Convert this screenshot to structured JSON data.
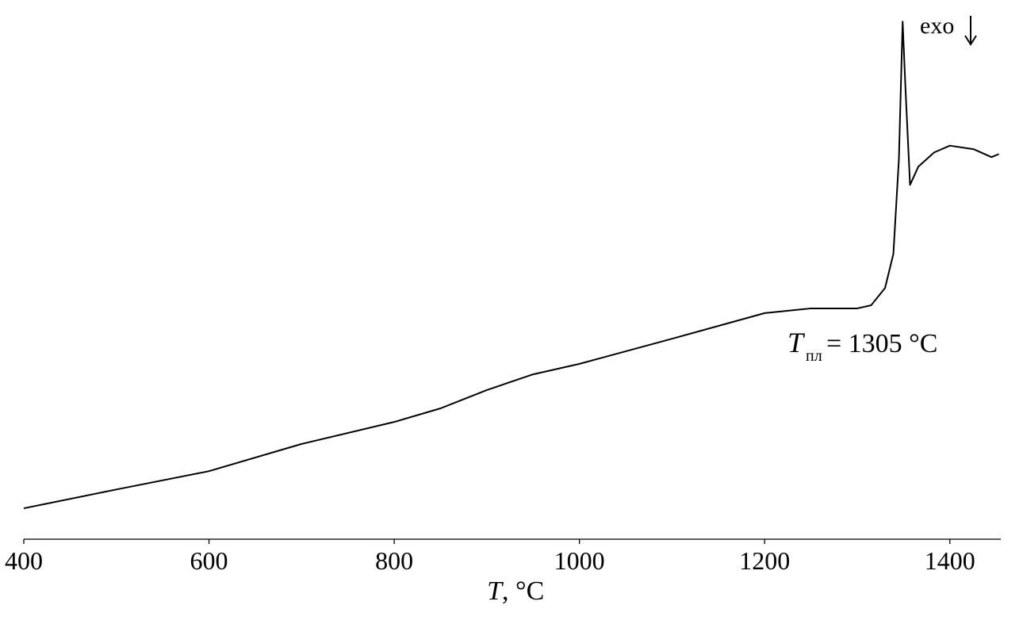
{
  "chart_data": {
    "type": "line",
    "x_label": {
      "symbol": "T",
      "unit": ", °C"
    },
    "annotation": {
      "symbol": "T",
      "subscript": "пл",
      "text": "= 1305 °C",
      "x": 1305
    },
    "direction_label": "exo",
    "x": [
      400,
      500,
      600,
      700,
      800,
      850,
      900,
      950,
      1000,
      1100,
      1200,
      1250,
      1300,
      1315,
      1330,
      1339,
      1345,
      1349,
      1352,
      1357,
      1366,
      1383,
      1400,
      1426,
      1445,
      1453
    ],
    "series": [
      {
        "color": "#000000",
        "values": [
          5.9,
          9.5,
          13.0,
          18.2,
          22.4,
          25.0,
          28.5,
          31.5,
          33.5,
          38.3,
          43.2,
          44.1,
          44.1,
          44.7,
          48.0,
          54.5,
          72.7,
          98.9,
          86.4,
          67.7,
          71.2,
          73.9,
          75.2,
          74.5,
          73.0,
          73.6
        ]
      }
    ],
    "xlim": [
      400,
      1455
    ],
    "xticks": [
      400,
      600,
      800,
      1000,
      1200,
      1400
    ],
    "ylim": [
      0,
      100
    ]
  }
}
